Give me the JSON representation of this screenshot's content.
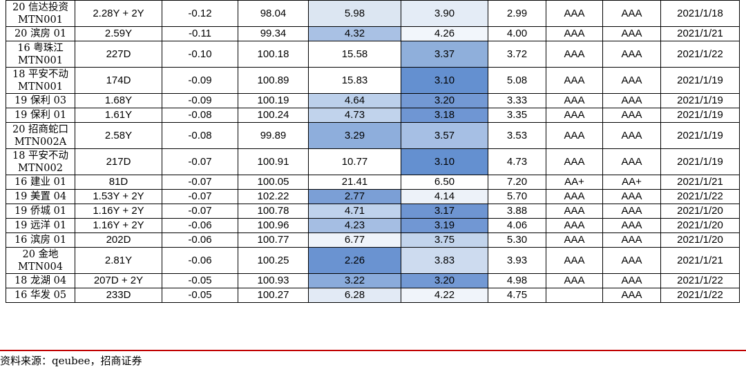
{
  "rows": [
    {
      "name": "20 信达投资 MTN001",
      "term": "2.28Y + 2Y",
      "change": "-0.12",
      "price": "98.04",
      "v1": "5.98",
      "v1_color": "#dce6f2",
      "v2": "3.90",
      "v2_color": "#e4ecf6",
      "v3": "2.99",
      "rating1": "AAA",
      "rating2": "AAA",
      "date": "2021/1/18"
    },
    {
      "name": "20 滨房 01",
      "term": "2.59Y",
      "change": "-0.11",
      "price": "99.34",
      "v1": "4.32",
      "v1_color": "#a9c1e4",
      "v2": "4.26",
      "v2_color": "#f2f6fb",
      "v3": "4.00",
      "rating1": "AAA",
      "rating2": "AAA",
      "date": "2021/1/21"
    },
    {
      "name": "16 粤珠江 MTN001",
      "term": "227D",
      "change": "-0.10",
      "price": "100.18",
      "v1": "15.58",
      "v1_color": "#ffffff",
      "v2": "3.37",
      "v2_color": "#8fafdb",
      "v3": "3.72",
      "rating1": "AAA",
      "rating2": "AAA",
      "date": "2021/1/22"
    },
    {
      "name": "18 平安不动 MTN001",
      "term": "174D",
      "change": "-0.09",
      "price": "100.89",
      "v1": "15.83",
      "v1_color": "#ffffff",
      "v2": "3.10",
      "v2_color": "#6490d0",
      "v3": "5.08",
      "rating1": "AAA",
      "rating2": "AAA",
      "date": "2021/1/19"
    },
    {
      "name": "19 保利 03",
      "term": "1.68Y",
      "change": "-0.09",
      "price": "100.19",
      "v1": "4.64",
      "v1_color": "#bcd0eb",
      "v2": "3.20",
      "v2_color": "#7399d4",
      "v3": "3.33",
      "rating1": "AAA",
      "rating2": "AAA",
      "date": "2021/1/19"
    },
    {
      "name": "19 保利 01",
      "term": "1.61Y",
      "change": "-0.08",
      "price": "100.24",
      "v1": "4.73",
      "v1_color": "#c1d3ec",
      "v2": "3.18",
      "v2_color": "#6f96d3",
      "v3": "3.35",
      "rating1": "AAA",
      "rating2": "AAA",
      "date": "2021/1/19"
    },
    {
      "name": "20 招商蛇口 MTN002A",
      "term": "2.58Y",
      "change": "-0.08",
      "price": "99.89",
      "v1": "3.29",
      "v1_color": "#8eaedc",
      "v2": "3.57",
      "v2_color": "#a6bfe4",
      "v3": "3.53",
      "rating1": "AAA",
      "rating2": "AAA",
      "date": "2021/1/19"
    },
    {
      "name": "18 平安不动 MTN002",
      "term": "217D",
      "change": "-0.07",
      "price": "100.91",
      "v1": "10.77",
      "v1_color": "#ffffff",
      "v2": "3.10",
      "v2_color": "#6490d0",
      "v3": "4.73",
      "rating1": "AAA",
      "rating2": "AAA",
      "date": "2021/1/19"
    },
    {
      "name": "16 建业 01",
      "term": "81D",
      "change": "-0.07",
      "price": "100.05",
      "v1": "21.41",
      "v1_color": "#ffffff",
      "v2": "6.50",
      "v2_color": "#ffffff",
      "v3": "7.20",
      "rating1": "AA+",
      "rating2": "AA+",
      "date": "2021/1/21"
    },
    {
      "name": "19 美置 04",
      "term": "1.53Y + 2Y",
      "change": "-0.07",
      "price": "102.22",
      "v1": "2.77",
      "v1_color": "#7b9fd6",
      "v2": "4.14",
      "v2_color": "#edf2f9",
      "v3": "5.70",
      "rating1": "AAA",
      "rating2": "AAA",
      "date": "2021/1/22"
    },
    {
      "name": "19 侨城 01",
      "term": "1.16Y + 2Y",
      "change": "-0.07",
      "price": "100.78",
      "v1": "4.71",
      "v1_color": "#bfd2ec",
      "v2": "3.17",
      "v2_color": "#6e95d2",
      "v3": "3.88",
      "rating1": "AAA",
      "rating2": "AAA",
      "date": "2021/1/20"
    },
    {
      "name": "19 远洋 01",
      "term": "1.16Y + 2Y",
      "change": "-0.06",
      "price": "100.96",
      "v1": "4.23",
      "v1_color": "#a5bee3",
      "v2": "3.19",
      "v2_color": "#7197d3",
      "v3": "4.06",
      "rating1": "AAA",
      "rating2": "AAA",
      "date": "2021/1/20"
    },
    {
      "name": "16 滨房 01",
      "term": "202D",
      "change": "-0.06",
      "price": "100.77",
      "v1": "6.77",
      "v1_color": "#eef3fa",
      "v2": "3.75",
      "v2_color": "#c2d4ec",
      "v3": "5.30",
      "rating1": "AAA",
      "rating2": "AAA",
      "date": "2021/1/20"
    },
    {
      "name": "20 金地 MTN004",
      "term": "2.81Y",
      "change": "-0.06",
      "price": "100.25",
      "v1": "2.26",
      "v1_color": "#6a93d1",
      "v2": "3.83",
      "v2_color": "#cddbef",
      "v3": "3.93",
      "rating1": "AAA",
      "rating2": "AAA",
      "date": "2021/1/21"
    },
    {
      "name": "18 龙湖 04",
      "term": "207D + 2Y",
      "change": "-0.05",
      "price": "100.93",
      "v1": "3.22",
      "v1_color": "#8aabdb",
      "v2": "3.20",
      "v2_color": "#7399d4",
      "v3": "4.98",
      "rating1": "AAA",
      "rating2": "AAA",
      "date": "2021/1/22"
    },
    {
      "name": "16 华发 05",
      "term": "233D",
      "change": "-0.05",
      "price": "100.27",
      "v1": "6.28",
      "v1_color": "#e2eaf5",
      "v2": "4.22",
      "v2_color": "#f0f4fa",
      "v3": "4.75",
      "rating1": "",
      "rating2": "AAA",
      "date": "2021/1/22"
    }
  ],
  "footer": {
    "source": "资料来源：qeubee，招商证券"
  }
}
